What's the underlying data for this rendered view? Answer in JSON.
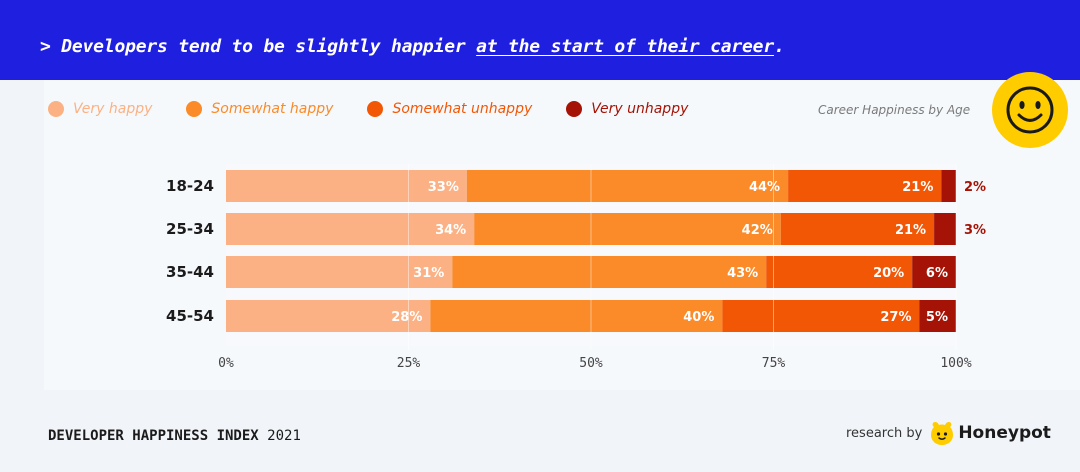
{
  "header": {
    "headline_prefix": "> Developers tend to be slightly happier ",
    "headline_highlight": "at the start of their career",
    "headline_suffix": "."
  },
  "legend": [
    {
      "label": "Very happy",
      "color": "#fbb184"
    },
    {
      "label": "Somewhat happy",
      "color": "#fb8a28"
    },
    {
      "label": "Somewhat unhappy",
      "color": "#f25706"
    },
    {
      "label": "Very unhappy",
      "color": "#a51306"
    }
  ],
  "chart_title": "Career Happiness by Age",
  "chart_data": {
    "type": "bar",
    "orientation": "horizontal",
    "stacked": true,
    "title": "Career Happiness by Age",
    "categories": [
      "18-24",
      "25-34",
      "35-44",
      "45-54"
    ],
    "series": [
      {
        "name": "Very happy",
        "color": "#fbb184",
        "values": [
          33,
          34,
          31,
          28
        ]
      },
      {
        "name": "Somewhat happy",
        "color": "#fb8a28",
        "values": [
          44,
          42,
          43,
          40
        ]
      },
      {
        "name": "Somewhat unhappy",
        "color": "#f25706",
        "values": [
          21,
          21,
          20,
          27
        ]
      },
      {
        "name": "Very unhappy",
        "color": "#a51306",
        "values": [
          2,
          3,
          6,
          5
        ]
      }
    ],
    "xlim": [
      0,
      100
    ],
    "xticks": [
      "0%",
      "25%",
      "50%",
      "75%",
      "100%"
    ],
    "value_suffix": "%",
    "grid": true
  },
  "footer": {
    "index_title": "DEVELOPER HAPPINESS INDEX",
    "index_year": "2021",
    "research_by": "research by",
    "brand": "Honeypot"
  }
}
